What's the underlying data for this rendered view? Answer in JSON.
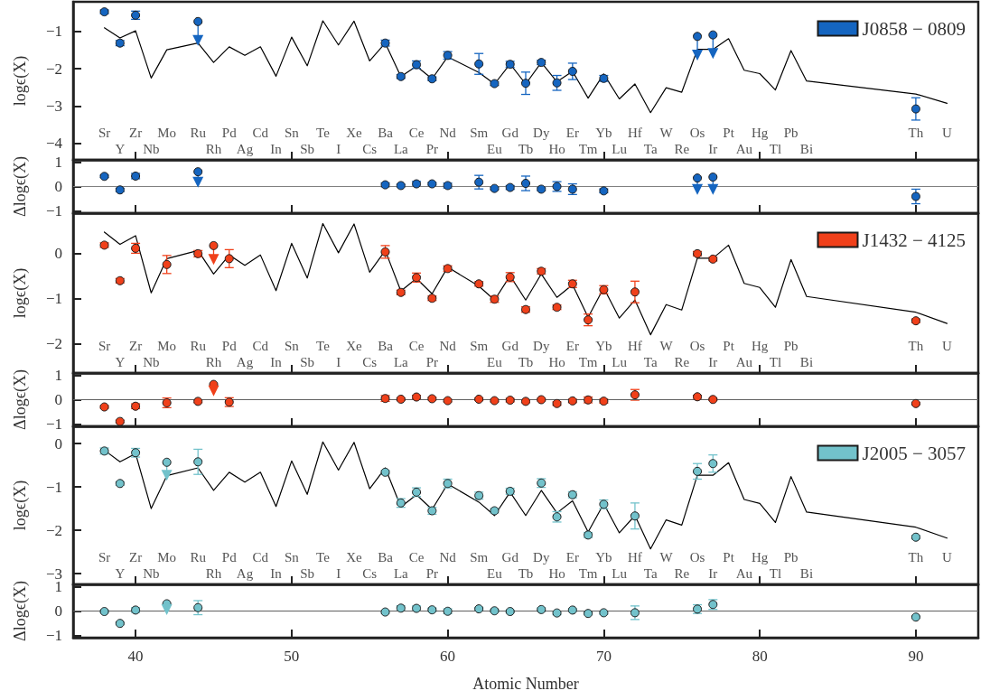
{
  "chart_data": [
    {
      "type": "scatter",
      "ylabel": "logϵ(X)",
      "xlim": [
        36,
        94
      ],
      "xticks": [
        40,
        50,
        60,
        70,
        80,
        90
      ],
      "ylim": [
        -4.45,
        -0.2
      ],
      "yticks": [
        -4,
        -3,
        -2,
        -1
      ],
      "tick_labels": "y",
      "legend": "top right",
      "annotations": [
        "Sr",
        "Y",
        "Zr",
        "Nb",
        "Mo",
        "Ru",
        "Rh",
        "Pd",
        "Ag",
        "Cd",
        "In",
        "Sn",
        "Sb",
        "Te",
        "I",
        "Xe",
        "Cs",
        "Ba",
        "La",
        "Ce",
        "Pr",
        "Nd",
        "Sm",
        "Eu",
        "Gd",
        "Tb",
        "Dy",
        "Ho",
        "Er",
        "Tm",
        "Yb",
        "Lu",
        "Hf",
        "Ta",
        "W",
        "Re",
        "Os",
        "Ir",
        "Pt",
        "Au",
        "Hg",
        "Tl",
        "Pb",
        "Bi",
        "Th",
        "U"
      ],
      "series": [
        {
          "type": "line",
          "color": "#000000",
          "marker": "none",
          "x": [
            38,
            39,
            40,
            41,
            42,
            44,
            45,
            46,
            47,
            48,
            49,
            50,
            51,
            52,
            53,
            54,
            55,
            56,
            57,
            58,
            59,
            60,
            62,
            63,
            64,
            65,
            66,
            67,
            68,
            69,
            70,
            71,
            72,
            73,
            74,
            75,
            76,
            77,
            78,
            79,
            80,
            81,
            82,
            83,
            90,
            92
          ],
          "values": [
            -0.9,
            -1.17,
            -0.98,
            -2.25,
            -1.49,
            -1.31,
            -1.83,
            -1.41,
            -1.64,
            -1.41,
            -2.2,
            -1.15,
            -1.92,
            -0.71,
            -1.36,
            -0.72,
            -1.79,
            -1.31,
            -2.21,
            -1.93,
            -2.27,
            -1.68,
            -2.1,
            -2.41,
            -1.87,
            -2.41,
            -1.83,
            -2.35,
            -2.07,
            -2.79,
            -2.14,
            -2.81,
            -2.41,
            -3.18,
            -2.51,
            -2.63,
            -1.48,
            -1.48,
            -1.19,
            -2.04,
            -2.13,
            -2.57,
            -1.51,
            -2.33,
            -2.68,
            -2.93
          ]
        },
        {
          "name": "J0858 − 0809",
          "color": "#1565c0",
          "marker": "circle",
          "x": [
            38,
            39,
            40,
            44,
            56,
            57,
            58,
            59,
            60,
            62,
            63,
            64,
            65,
            66,
            67,
            68,
            70,
            76,
            77,
            90
          ],
          "values": [
            -0.47,
            -1.31,
            -0.56,
            -0.73,
            -1.31,
            -2.21,
            -1.89,
            -2.27,
            -1.64,
            -1.87,
            -2.4,
            -1.88,
            -2.39,
            -1.83,
            -2.38,
            -2.07,
            -2.26,
            -1.13,
            -1.09,
            -3.08
          ],
          "errors": [
            0.05,
            0.07,
            0.11,
            [
              -1.24,
              -0.73
            ],
            0.08,
            0.05,
            0.1,
            0.05,
            0.1,
            0.28,
            0.05,
            0.08,
            0.3,
            0.06,
            0.2,
            0.22,
            0.08,
            [
              -1.63,
              -1.13
            ],
            [
              -1.59,
              -1.09
            ],
            0.3
          ]
        },
        {
          "color": "#1565c0",
          "marker": "triangle",
          "x": [
            44,
            76,
            77
          ],
          "values": [
            -1.24,
            -1.63,
            -1.59
          ]
        }
      ]
    },
    {
      "type": "scatter",
      "ylabel": "Δlogϵ(X)",
      "xlim": [
        36,
        94
      ],
      "xticks": [
        40,
        50,
        60,
        70,
        80,
        90
      ],
      "ylim": [
        -1.1,
        1.1
      ],
      "yticks": [
        -1,
        0,
        1
      ],
      "tick_labels": "y",
      "ref_lines": [
        {
          "axis": "y",
          "value": 0,
          "color": "#808080"
        }
      ],
      "series": [
        {
          "color": "#1565c0",
          "marker": "circle",
          "x": [
            38,
            39,
            40,
            44,
            56,
            57,
            58,
            59,
            60,
            62,
            63,
            64,
            65,
            66,
            67,
            68,
            70,
            76,
            77,
            90
          ],
          "values": [
            0.42,
            -0.14,
            0.43,
            0.61,
            0.07,
            0.04,
            0.11,
            0.11,
            0.04,
            0.18,
            -0.08,
            -0.04,
            0.13,
            -0.11,
            0.0,
            -0.11,
            -0.18,
            0.35,
            0.39,
            -0.41
          ],
          "errors": [
            0.05,
            0.07,
            0.11,
            [
              0.18,
              0.61
            ],
            0.08,
            0.05,
            0.1,
            0.05,
            0.1,
            0.28,
            0.05,
            0.08,
            0.3,
            0.06,
            0.2,
            0.22,
            0.08,
            [
              -0.12,
              0.35
            ],
            [
              -0.12,
              0.39
            ],
            0.3
          ]
        },
        {
          "color": "#1565c0",
          "marker": "triangle",
          "x": [
            44,
            76,
            77
          ],
          "values": [
            0.18,
            -0.12,
            -0.12
          ]
        }
      ]
    },
    {
      "type": "scatter",
      "ylabel": "logϵ(X)",
      "xlim": [
        36,
        94
      ],
      "xticks": [
        40,
        50,
        60,
        70,
        80,
        90
      ],
      "ylim": [
        -2.65,
        0.9
      ],
      "yticks": [
        -2,
        -1,
        0
      ],
      "tick_labels": "y",
      "legend": "top right",
      "annotations": [
        "Sr",
        "Y",
        "Zr",
        "Nb",
        "Mo",
        "Ru",
        "Rh",
        "Pd",
        "Ag",
        "Cd",
        "In",
        "Sn",
        "Sb",
        "Te",
        "I",
        "Xe",
        "Cs",
        "Ba",
        "La",
        "Ce",
        "Pr",
        "Nd",
        "Sm",
        "Eu",
        "Gd",
        "Tb",
        "Dy",
        "Ho",
        "Er",
        "Tm",
        "Yb",
        "Lu",
        "Hf",
        "Ta",
        "W",
        "Re",
        "Os",
        "Ir",
        "Pt",
        "Au",
        "Hg",
        "Tl",
        "Pb",
        "Bi",
        "Th",
        "U"
      ],
      "series": [
        {
          "type": "line",
          "color": "#000000",
          "marker": "none",
          "x": [
            38,
            39,
            40,
            41,
            42,
            44,
            45,
            46,
            47,
            48,
            49,
            50,
            51,
            52,
            53,
            54,
            55,
            56,
            57,
            58,
            59,
            60,
            62,
            63,
            64,
            65,
            66,
            67,
            68,
            69,
            70,
            71,
            72,
            73,
            74,
            75,
            76,
            77,
            78,
            79,
            80,
            81,
            82,
            83,
            90,
            92
          ],
          "values": [
            0.48,
            0.21,
            0.4,
            -0.87,
            -0.11,
            0.07,
            -0.45,
            -0.03,
            -0.26,
            -0.03,
            -0.82,
            0.23,
            -0.54,
            0.67,
            0.02,
            0.66,
            -0.41,
            0.07,
            -0.83,
            -0.55,
            -0.89,
            -0.3,
            -0.72,
            -1.03,
            -0.49,
            -1.03,
            -0.45,
            -0.97,
            -0.69,
            -1.41,
            -0.76,
            -1.43,
            -1.03,
            -1.8,
            -1.13,
            -1.25,
            -0.1,
            -0.1,
            0.19,
            -0.66,
            -0.75,
            -1.19,
            -0.13,
            -0.95,
            -1.3,
            -1.55
          ]
        },
        {
          "name": "J1432 − 4125",
          "color": "#f0401a",
          "marker": "circle",
          "x": [
            38,
            39,
            40,
            42,
            44,
            45,
            46,
            56,
            57,
            58,
            59,
            60,
            62,
            63,
            64,
            65,
            66,
            67,
            68,
            69,
            70,
            72,
            76,
            77,
            90
          ],
          "values": [
            0.19,
            -0.6,
            0.12,
            -0.24,
            0.0,
            0.18,
            -0.11,
            0.04,
            -0.86,
            -0.53,
            -0.99,
            -0.33,
            -0.67,
            -1.01,
            -0.52,
            -1.24,
            -0.39,
            -1.19,
            -0.67,
            -1.47,
            -0.8,
            -0.85,
            0.0,
            -0.12,
            -1.49
          ],
          "errors": [
            0.05,
            0.05,
            0.11,
            0.2,
            0.07,
            [
              -0.13,
              0.18
            ],
            0.2,
            0.14,
            0.05,
            0.1,
            0.05,
            0.06,
            0.05,
            0.07,
            0.1,
            0.06,
            0.06,
            0.05,
            0.08,
            0.13,
            0.09,
            0.24,
            0.05,
            0.04,
            0.04
          ]
        },
        {
          "color": "#f0401a",
          "marker": "triangle",
          "x": [
            45
          ],
          "values": [
            -0.13
          ]
        }
      ]
    },
    {
      "type": "scatter",
      "ylabel": "Δlogϵ(X)",
      "xlim": [
        36,
        94
      ],
      "xticks": [
        40,
        50,
        60,
        70,
        80,
        90
      ],
      "ylim": [
        -1.1,
        1.1
      ],
      "yticks": [
        -1,
        0,
        1
      ],
      "tick_labels": "y",
      "ref_lines": [
        {
          "axis": "y",
          "value": 0,
          "color": "#606060"
        }
      ],
      "series": [
        {
          "color": "#f0401a",
          "marker": "circle",
          "x": [
            38,
            39,
            40,
            42,
            44,
            45,
            46,
            56,
            57,
            58,
            59,
            60,
            62,
            63,
            64,
            65,
            66,
            67,
            68,
            69,
            70,
            72,
            76,
            77,
            90
          ],
          "values": [
            -0.3,
            -0.9,
            -0.27,
            -0.13,
            -0.07,
            0.63,
            -0.1,
            0.05,
            0.02,
            0.11,
            0.04,
            -0.04,
            0.02,
            -0.04,
            -0.02,
            -0.07,
            0.0,
            -0.16,
            -0.05,
            -0.01,
            -0.06,
            0.2,
            0.12,
            0.01,
            -0.16
          ],
          "errors": [
            0.05,
            0.05,
            0.1,
            0.2,
            0.05,
            [
              0.36,
              0.63
            ],
            0.18,
            0.12,
            0.05,
            0.07,
            0.05,
            0.05,
            0.05,
            0.05,
            0.07,
            0.05,
            0.05,
            0.07,
            0.07,
            0.12,
            0.08,
            0.22,
            0.06,
            0.04,
            0.04
          ]
        },
        {
          "color": "#f0401a",
          "marker": "triangle",
          "x": [
            45
          ],
          "values": [
            0.36
          ]
        }
      ]
    },
    {
      "type": "scatter",
      "ylabel": "logϵ(X)",
      "xlim": [
        36,
        94
      ],
      "xticks": [
        40,
        50,
        60,
        70,
        80,
        90
      ],
      "ylim": [
        -3.25,
        0.4
      ],
      "yticks": [
        -3,
        -2,
        -1,
        0
      ],
      "tick_labels": "y",
      "legend": "top right",
      "annotations": [
        "Sr",
        "Y",
        "Zr",
        "Nb",
        "Mo",
        "Ru",
        "Rh",
        "Pd",
        "Ag",
        "Cd",
        "In",
        "Sn",
        "Sb",
        "Te",
        "I",
        "Xe",
        "Cs",
        "Ba",
        "La",
        "Ce",
        "Pr",
        "Nd",
        "Sm",
        "Eu",
        "Gd",
        "Tb",
        "Dy",
        "Ho",
        "Er",
        "Tm",
        "Yb",
        "Lu",
        "Hf",
        "Ta",
        "W",
        "Re",
        "Os",
        "Ir",
        "Pt",
        "Au",
        "Hg",
        "Tl",
        "Pb",
        "Bi",
        "Th",
        "U"
      ],
      "series": [
        {
          "type": "line",
          "color": "#000000",
          "marker": "none",
          "x": [
            38,
            39,
            40,
            41,
            42,
            44,
            45,
            46,
            47,
            48,
            49,
            50,
            51,
            52,
            53,
            54,
            55,
            56,
            57,
            58,
            59,
            60,
            62,
            63,
            64,
            65,
            66,
            67,
            68,
            69,
            70,
            71,
            72,
            73,
            74,
            75,
            76,
            77,
            78,
            79,
            80,
            81,
            82,
            83,
            90,
            92
          ],
          "values": [
            -0.15,
            -0.42,
            -0.23,
            -1.5,
            -0.74,
            -0.56,
            -1.08,
            -0.66,
            -0.89,
            -0.66,
            -1.45,
            -0.4,
            -1.17,
            0.04,
            -0.61,
            0.03,
            -1.04,
            -0.56,
            -1.46,
            -1.18,
            -1.52,
            -0.93,
            -1.35,
            -1.66,
            -1.12,
            -1.66,
            -1.08,
            -1.6,
            -1.32,
            -2.04,
            -1.39,
            -2.06,
            -1.66,
            -2.43,
            -1.76,
            -1.88,
            -0.73,
            -0.73,
            -0.44,
            -1.29,
            -1.38,
            -1.82,
            -0.76,
            -1.58,
            -1.93,
            -2.18
          ]
        },
        {
          "name": "J2005 − 3057",
          "color": "#72c2cb",
          "marker": "circle",
          "x": [
            38,
            39,
            40,
            42,
            44,
            56,
            57,
            58,
            59,
            60,
            62,
            63,
            64,
            66,
            67,
            68,
            69,
            70,
            72,
            76,
            77,
            90
          ],
          "values": [
            -0.17,
            -0.92,
            -0.21,
            -0.43,
            -0.42,
            -0.66,
            -1.37,
            -1.12,
            -1.55,
            -0.92,
            -1.2,
            -1.55,
            -1.1,
            -0.91,
            -1.69,
            -1.18,
            -2.11,
            -1.4,
            -1.67,
            -0.64,
            -0.46,
            -2.16
          ],
          "errors": [
            0.07,
            0.04,
            0.1,
            [
              -0.73,
              -0.43
            ],
            0.29,
            0.04,
            0.1,
            0.1,
            0.08,
            0.1,
            0.08,
            0.05,
            0.07,
            0.1,
            0.12,
            0.07,
            0.06,
            0.1,
            0.3,
            0.18,
            0.2,
            0.04
          ]
        },
        {
          "color": "#72c2cb",
          "marker": "triangle",
          "x": [
            42
          ],
          "values": [
            -0.73
          ]
        }
      ]
    },
    {
      "type": "scatter",
      "ylabel": "Δlogϵ(X)",
      "xlabel": "Atomic Number",
      "xlim": [
        36,
        94
      ],
      "xticks": [
        40,
        50,
        60,
        70,
        80,
        90
      ],
      "ylim": [
        -1.1,
        1.1
      ],
      "yticks": [
        -1,
        0,
        1
      ],
      "ref_lines": [
        {
          "axis": "y",
          "value": 0,
          "color": "#606060"
        }
      ],
      "series": [
        {
          "color": "#72c2cb",
          "marker": "circle",
          "x": [
            38,
            39,
            40,
            42,
            44,
            56,
            57,
            58,
            59,
            60,
            62,
            63,
            64,
            66,
            67,
            68,
            69,
            70,
            72,
            76,
            77,
            90
          ],
          "values": [
            -0.02,
            -0.51,
            0.04,
            0.3,
            0.14,
            -0.04,
            0.12,
            0.11,
            0.05,
            -0.01,
            0.09,
            0.01,
            -0.02,
            0.06,
            -0.08,
            0.04,
            -0.1,
            -0.07,
            -0.07,
            0.08,
            0.27,
            -0.25
          ],
          "errors": [
            0.05,
            0.05,
            0.1,
            [
              0.06,
              0.3
            ],
            0.29,
            0.05,
            0.1,
            0.1,
            0.07,
            0.1,
            0.06,
            0.05,
            0.05,
            0.07,
            0.07,
            0.05,
            0.05,
            0.06,
            0.28,
            0.18,
            0.2,
            0.04
          ]
        },
        {
          "color": "#72c2cb",
          "marker": "triangle",
          "x": [
            42
          ],
          "values": [
            0.06
          ]
        }
      ]
    }
  ]
}
